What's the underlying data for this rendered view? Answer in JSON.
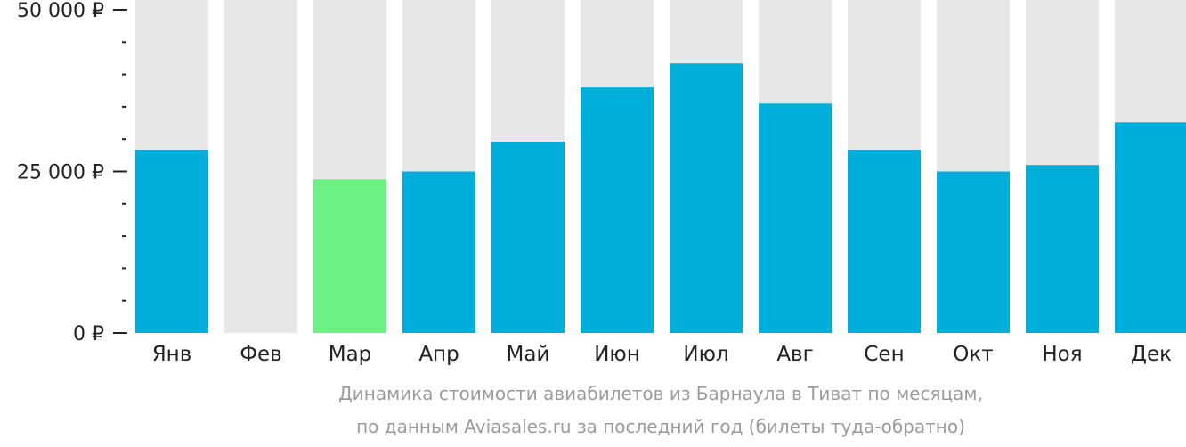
{
  "chart_data": {
    "type": "bar",
    "categories": [
      "Янв",
      "Фев",
      "Мар",
      "Апр",
      "Май",
      "Июн",
      "Июл",
      "Авг",
      "Сен",
      "Окт",
      "Ноя",
      "Дек"
    ],
    "values": [
      28300,
      null,
      23800,
      25000,
      29600,
      38000,
      41700,
      35500,
      28300,
      25000,
      26000,
      32600
    ],
    "highlight_index": 2,
    "ylim": [
      0,
      50000
    ],
    "yticks": [
      {
        "value": 0,
        "label": "0 ₽"
      },
      {
        "value": 25000,
        "label": "25 000 ₽"
      },
      {
        "value": 50000,
        "label": "50 000 ₽"
      }
    ],
    "minor_step": 5000,
    "xlabel": "",
    "ylabel": "",
    "grid": false,
    "colors": {
      "bar": "#00aedb",
      "highlight": "#6cf185",
      "background_bar": "#e8e8e8",
      "axis": "#222222"
    }
  },
  "caption": {
    "line1": "Динамика стоимости авиабилетов из Барнаула в Тиват по месяцам,",
    "line2": "по данным Aviasales.ru за последний год (билеты туда-обратно)"
  }
}
